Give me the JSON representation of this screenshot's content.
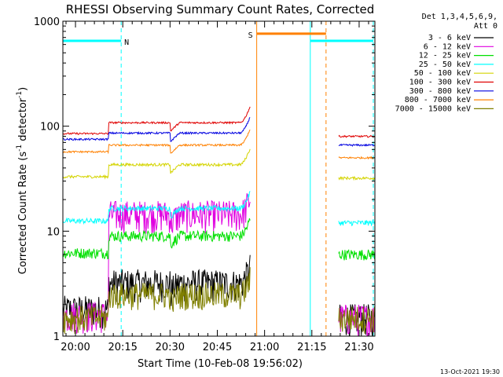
{
  "chart_data": {
    "type": "line",
    "title": "RHESSI Observing Summary Count Rates, Corrected",
    "xlabel": "Start Time (10-Feb-08 19:56:02)",
    "ylabel_main": "Corrected Count Rate (s",
    "ylabel_sup1": "-1",
    "ylabel_mid": " detector",
    "ylabel_sup2": "-1",
    "ylabel_end": ")",
    "yscale": "log",
    "ylim": [
      1,
      1000
    ],
    "xlim_minutes": [
      -4,
      95
    ],
    "x_ticks": [
      {
        "label": "20:00",
        "min": 0
      },
      {
        "label": "20:15",
        "min": 15
      },
      {
        "label": "20:30",
        "min": 30
      },
      {
        "label": "20:45",
        "min": 45
      },
      {
        "label": "21:00",
        "min": 60
      },
      {
        "label": "21:15",
        "min": 75
      },
      {
        "label": "21:30",
        "min": 90
      }
    ],
    "y_ticks": [
      {
        "label": "1",
        "v": 1
      },
      {
        "label": "10",
        "v": 10
      },
      {
        "label": "100",
        "v": 100
      },
      {
        "label": "1000",
        "v": 1000
      }
    ],
    "legend_header": [
      "Det 1,3,4,5,6,9,",
      "Att 0"
    ],
    "series": [
      {
        "name": "3 - 6 keV",
        "color": "#000000",
        "pre": 1.8,
        "mid": 3.2,
        "post": 1.5,
        "noise": 0.35
      },
      {
        "name": "6 - 12 keV",
        "color": "#e000e0",
        "pre": 1.6,
        "mid": 14.5,
        "post": 1.5,
        "noise": 0.35
      },
      {
        "name": "12 - 25 keV",
        "color": "#00e000",
        "pre": 6.2,
        "mid": 9.0,
        "post": 6.0,
        "noise": 0.12
      },
      {
        "name": "25 - 50 keV",
        "color": "#00ffff",
        "pre": 12.5,
        "mid": 16.5,
        "post": 12.0,
        "noise": 0.06
      },
      {
        "name": "50 - 100 keV",
        "color": "#d4d400",
        "pre": 33,
        "mid": 43,
        "post": 32,
        "noise": 0.03
      },
      {
        "name": "100 - 300 keV",
        "color": "#e00000",
        "pre": 85,
        "mid": 108,
        "post": 80,
        "noise": 0.02
      },
      {
        "name": "300 - 800 keV",
        "color": "#0000e0",
        "pre": 75,
        "mid": 86,
        "post": 66,
        "noise": 0.02
      },
      {
        "name": "800 - 7000 keV",
        "color": "#ff8000",
        "pre": 57,
        "mid": 66,
        "post": 50,
        "noise": 0.02
      },
      {
        "name": "7000 - 15000 keV",
        "color": "#808000",
        "pre": 1.5,
        "mid": 2.5,
        "post": 1.5,
        "noise": 0.3
      }
    ],
    "flags": [
      {
        "label": "N",
        "color": "#00ffff",
        "level": 650,
        "start": -4,
        "end": 14.5
      },
      {
        "label": "S",
        "color": "#ff8000",
        "level": 760,
        "start": 57.5,
        "end": 79.5
      },
      {
        "label": "",
        "color": "#00ffff",
        "level": 650,
        "start": 74.5,
        "end": 94.5
      }
    ],
    "night_boundaries": [
      {
        "color": "#00ffff",
        "min": 14.5,
        "dash": true
      },
      {
        "color": "#00ffff",
        "min": 74.5,
        "dash": false
      },
      {
        "color": "#00ffff",
        "min": 94.5,
        "dash": true
      },
      {
        "color": "#ff8000",
        "min": 57.5,
        "dash": false
      },
      {
        "color": "#ff8000",
        "min": 79.5,
        "dash": true
      }
    ],
    "data_segments": [
      [
        -4,
        55.5
      ],
      [
        83.5,
        95
      ]
    ],
    "timestamp": "13-Oct-2021 19:30"
  }
}
